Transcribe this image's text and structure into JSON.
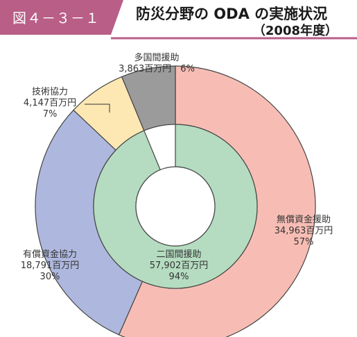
{
  "header": {
    "figure_number": "図４－３－１",
    "title": "防災分野の ODA の実施状況",
    "subtitle": "（2008年度）"
  },
  "colors": {
    "header_band": "#b85e87",
    "header_line": "#b85e87",
    "grant_aid": "#f7bdb4",
    "multilateral": "#9b9b9b",
    "technical_cooperation": "#fde7b3",
    "loan_aid": "#aeb8de",
    "bilateral": "#b5dcc0",
    "center": "#ffffff",
    "stroke": "#444444"
  },
  "chart_data": {
    "type": "pie",
    "unit": "百万円",
    "outer_ring": [
      {
        "name": "無償資金援助",
        "value": 34963,
        "value_text": "34,963百万円",
        "percent": "57%",
        "color_key": "grant_aid"
      },
      {
        "name": "有償資金協力",
        "value": 18791,
        "value_text": "18,791百万円",
        "percent": "30%",
        "color_key": "loan_aid"
      },
      {
        "name": "技術協力",
        "value": 4147,
        "value_text": "4,147百万円",
        "percent": "7%",
        "color_key": "technical_cooperation"
      },
      {
        "name": "多国間援助",
        "value": 3863,
        "value_text": "3,863百万円",
        "percent": "6%",
        "color_key": "multilateral"
      }
    ],
    "inner_ring": [
      {
        "name": "二国間援助",
        "value": 57902,
        "value_text": "57,902百万円",
        "percent": "94%",
        "color_key": "bilateral"
      }
    ]
  }
}
